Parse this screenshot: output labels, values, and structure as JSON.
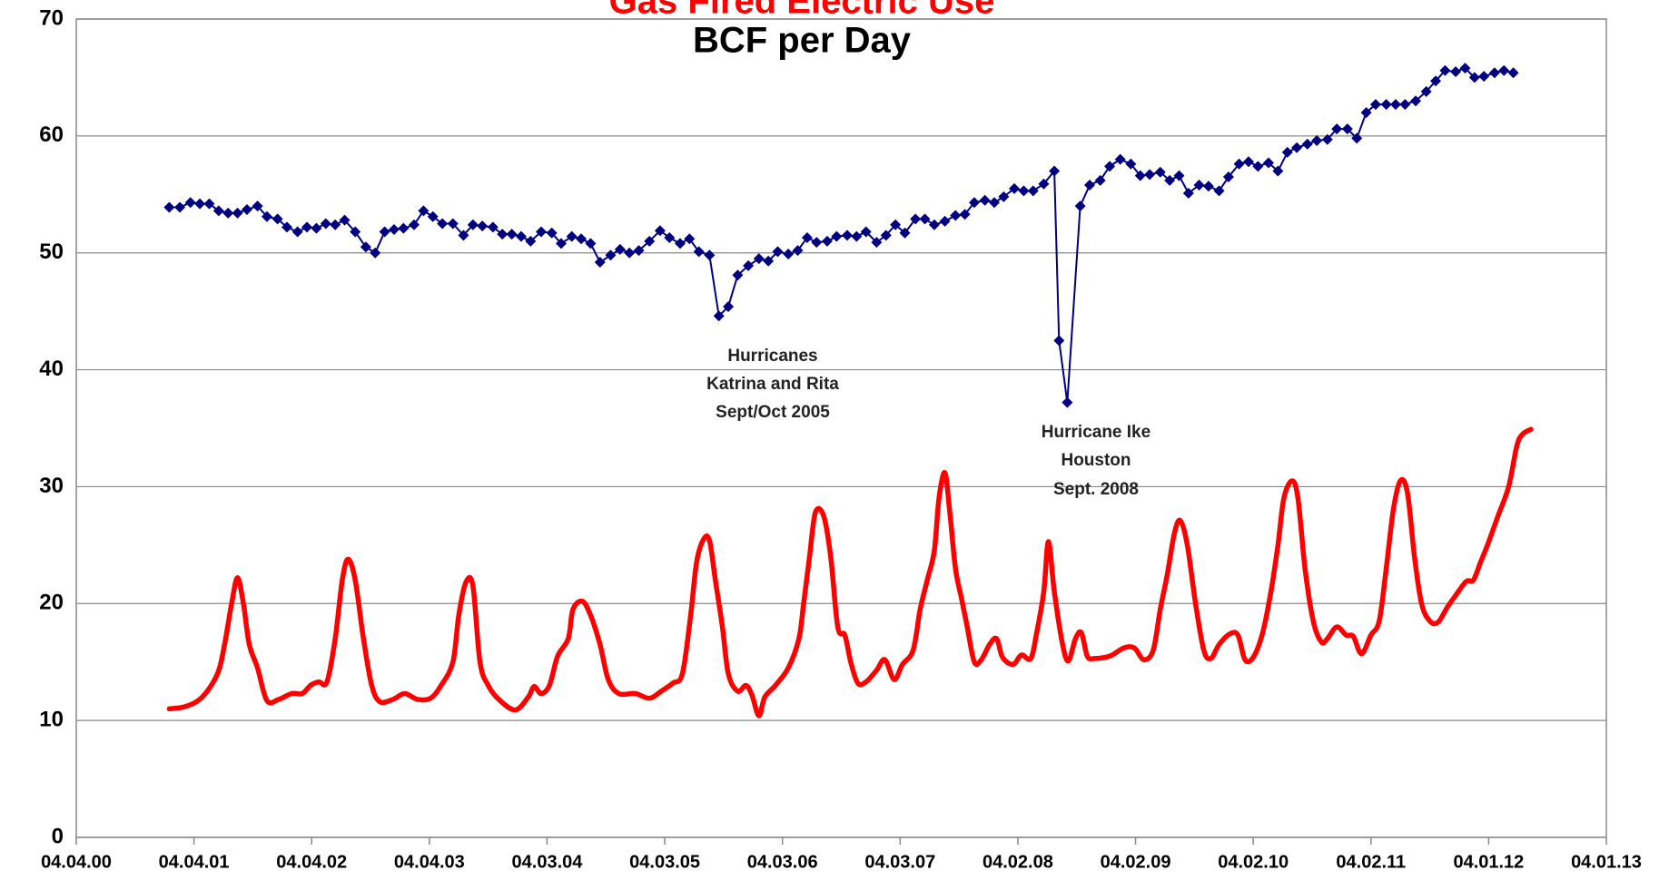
{
  "chart_data": {
    "type": "line",
    "title": "Gas Fired Electric Use",
    "subtitle": "BCF per Day",
    "xlim": [
      0,
      13
    ],
    "xticks": [
      {
        "value": 0,
        "label": "04.04.00"
      },
      {
        "value": 1,
        "label": "04.04.01"
      },
      {
        "value": 2,
        "label": "04.04.02"
      },
      {
        "value": 3,
        "label": "04.04.03"
      },
      {
        "value": 4,
        "label": "04.03.04"
      },
      {
        "value": 5,
        "label": "04.03.05"
      },
      {
        "value": 6,
        "label": "04.03.06"
      },
      {
        "value": 7,
        "label": "04.03.07"
      },
      {
        "value": 8,
        "label": "04.02.08"
      },
      {
        "value": 9,
        "label": "04.02.09"
      },
      {
        "value": 10,
        "label": "04.02.10"
      },
      {
        "value": 11,
        "label": "04.02.11"
      },
      {
        "value": 12,
        "label": "04.01.12"
      },
      {
        "value": 13,
        "label": "04.01.13"
      }
    ],
    "ylim": [
      0,
      70
    ],
    "yticks": [
      0,
      10,
      20,
      30,
      40,
      50,
      60,
      70
    ],
    "grid": true,
    "annotations": [
      {
        "lines": [
          "Hurricanes",
          "Katrina and Rita",
          "Sept/Oct 2005"
        ]
      },
      {
        "lines": [
          "Hurricane Ike",
          "Houston",
          "Sept. 2008"
        ]
      }
    ],
    "series": [
      {
        "color": "#000080",
        "markers": true,
        "smooth": false,
        "x": [
          0.79,
          0.88,
          0.97,
          1.05,
          1.13,
          1.21,
          1.29,
          1.37,
          1.45,
          1.54,
          1.62,
          1.71,
          1.79,
          1.88,
          1.96,
          2.04,
          2.12,
          2.2,
          2.28,
          2.37,
          2.46,
          2.54,
          2.62,
          2.7,
          2.78,
          2.87,
          2.95,
          3.03,
          3.11,
          3.2,
          3.29,
          3.37,
          3.45,
          3.54,
          3.62,
          3.7,
          3.78,
          3.86,
          3.95,
          4.04,
          4.12,
          4.21,
          4.29,
          4.37,
          4.45,
          4.54,
          4.62,
          4.7,
          4.78,
          4.87,
          4.96,
          5.04,
          5.13,
          5.21,
          5.29,
          5.38,
          5.46,
          5.54,
          5.62,
          5.71,
          5.8,
          5.88,
          5.96,
          6.05,
          6.13,
          6.21,
          6.29,
          6.38,
          6.46,
          6.55,
          6.63,
          6.71,
          6.8,
          6.88,
          6.96,
          7.04,
          7.13,
          7.21,
          7.29,
          7.38,
          7.47,
          7.55,
          7.63,
          7.72,
          7.8,
          7.88,
          7.97,
          8.05,
          8.13,
          8.22,
          8.31,
          8.35,
          8.42,
          8.53,
          8.61,
          8.7,
          8.78,
          8.87,
          8.96,
          9.04,
          9.12,
          9.21,
          9.29,
          9.37,
          9.45,
          9.54,
          9.62,
          9.71,
          9.79,
          9.88,
          9.96,
          10.04,
          10.13,
          10.21,
          10.29,
          10.37,
          10.46,
          10.54,
          10.63,
          10.71,
          10.8,
          10.88,
          10.96,
          11.04,
          11.13,
          11.21,
          11.29,
          11.38,
          11.47,
          11.55,
          11.63,
          11.72,
          11.8,
          11.88,
          11.96,
          12.05,
          12.13,
          12.21
        ],
        "values": [
          53.9,
          53.9,
          54.3,
          54.2,
          54.2,
          53.6,
          53.4,
          53.4,
          53.7,
          54.0,
          53.1,
          52.9,
          52.2,
          51.8,
          52.2,
          52.1,
          52.5,
          52.4,
          52.8,
          51.8,
          50.5,
          50.0,
          51.8,
          52.0,
          52.1,
          52.4,
          53.6,
          53.1,
          52.5,
          52.5,
          51.5,
          52.4,
          52.3,
          52.2,
          51.6,
          51.6,
          51.4,
          51.0,
          51.8,
          51.7,
          50.8,
          51.4,
          51.2,
          50.8,
          49.2,
          49.8,
          50.3,
          50.0,
          50.2,
          51.0,
          51.9,
          51.3,
          50.8,
          51.2,
          50.1,
          49.8,
          44.6,
          45.4,
          48.1,
          48.9,
          49.5,
          49.3,
          50.1,
          49.9,
          50.2,
          51.3,
          50.9,
          51.0,
          51.4,
          51.5,
          51.4,
          51.8,
          50.9,
          51.5,
          52.4,
          51.7,
          52.9,
          52.9,
          52.4,
          52.7,
          53.2,
          53.3,
          54.3,
          54.5,
          54.3,
          54.8,
          55.5,
          55.3,
          55.3,
          55.9,
          57.0,
          42.5,
          37.2,
          54.0,
          55.8,
          56.2,
          57.4,
          58.0,
          57.6,
          56.6,
          56.7,
          56.9,
          56.2,
          56.6,
          55.1,
          55.8,
          55.7,
          55.3,
          56.5,
          57.6,
          57.8,
          57.4,
          57.7,
          57.0,
          58.6,
          59.0,
          59.3,
          59.6,
          59.7,
          60.6,
          60.6,
          59.8,
          62.0,
          62.7,
          62.7,
          62.7,
          62.7,
          63.0,
          63.8,
          64.7,
          65.6,
          65.5,
          65.8,
          65.0,
          65.1,
          65.4,
          65.6,
          65.4
        ]
      },
      {
        "color": "#ff0000",
        "markers": false,
        "smooth": true,
        "x": [
          0.79,
          0.93,
          1.07,
          1.2,
          1.26,
          1.32,
          1.37,
          1.42,
          1.47,
          1.54,
          1.62,
          1.72,
          1.83,
          1.92,
          1.99,
          2.06,
          2.13,
          2.2,
          2.26,
          2.31,
          2.37,
          2.44,
          2.51,
          2.58,
          2.69,
          2.79,
          2.9,
          3.01,
          3.1,
          3.2,
          3.25,
          3.31,
          3.37,
          3.43,
          3.5,
          3.59,
          3.73,
          3.84,
          3.89,
          3.95,
          4.02,
          4.09,
          4.18,
          4.22,
          4.3,
          4.37,
          4.45,
          4.52,
          4.61,
          4.75,
          4.87,
          4.97,
          5.07,
          5.15,
          5.22,
          5.27,
          5.33,
          5.38,
          5.43,
          5.49,
          5.54,
          5.62,
          5.69,
          5.74,
          5.8,
          5.85,
          5.94,
          6.05,
          6.14,
          6.18,
          6.23,
          6.28,
          6.35,
          6.41,
          6.47,
          6.53,
          6.58,
          6.64,
          6.71,
          6.8,
          6.87,
          6.95,
          7.02,
          7.11,
          7.17,
          7.23,
          7.29,
          7.33,
          7.38,
          7.42,
          7.47,
          7.52,
          7.57,
          7.63,
          7.69,
          7.76,
          7.82,
          7.87,
          7.96,
          8.03,
          8.11,
          8.16,
          8.22,
          8.26,
          8.31,
          8.38,
          8.43,
          8.49,
          8.54,
          8.59,
          8.65,
          8.78,
          8.9,
          8.99,
          9.07,
          9.15,
          9.21,
          9.27,
          9.33,
          9.38,
          9.44,
          9.51,
          9.58,
          9.64,
          9.71,
          9.8,
          9.87,
          9.93,
          10.0,
          10.08,
          10.15,
          10.21,
          10.26,
          10.33,
          10.38,
          10.44,
          10.51,
          10.58,
          10.63,
          10.71,
          10.79,
          10.85,
          10.92,
          11.0,
          11.07,
          11.13,
          11.19,
          11.25,
          11.31,
          11.37,
          11.43,
          11.5,
          11.57,
          11.65,
          11.72,
          11.81,
          11.87,
          11.93,
          11.99,
          12.08,
          12.17,
          12.24,
          12.29,
          12.36
        ],
        "values": [
          11.0,
          11.2,
          12.0,
          14.0,
          16.5,
          20,
          22.2,
          20,
          16.5,
          14.5,
          11.7,
          11.8,
          12.3,
          12.3,
          13.0,
          13.3,
          13.3,
          17,
          22,
          23.8,
          22,
          17,
          13,
          11.6,
          11.8,
          12.3,
          11.8,
          11.9,
          13,
          15,
          19,
          21.8,
          21.5,
          15,
          13,
          11.8,
          10.9,
          12.0,
          12.9,
          12.3,
          13,
          15.5,
          17,
          19.5,
          20.2,
          19,
          16.5,
          13.5,
          12.3,
          12.3,
          11.9,
          12.5,
          13.2,
          14,
          19,
          23.5,
          25.5,
          25.4,
          22,
          18,
          14,
          12.5,
          13,
          12.2,
          10.4,
          12,
          13,
          14.5,
          17,
          20,
          24,
          27.8,
          27.5,
          24,
          18,
          17.3,
          15,
          13.2,
          13.3,
          14.3,
          15.2,
          13.5,
          14.8,
          16,
          19.5,
          22,
          24.5,
          29,
          31.2,
          28,
          23,
          20.5,
          18,
          15,
          15.2,
          16.5,
          17,
          15.4,
          14.8,
          15.6,
          15.3,
          17.5,
          21,
          25.3,
          21,
          16.5,
          15.1,
          17,
          17.5,
          15.5,
          15.3,
          15.5,
          16.2,
          16.2,
          15.2,
          16,
          19.5,
          22.5,
          26,
          27.1,
          25,
          20,
          16,
          15.3,
          16.5,
          17.4,
          17.3,
          15.2,
          15.4,
          17.5,
          21,
          25,
          29,
          30.5,
          29,
          23,
          18.5,
          16.7,
          17,
          18,
          17.3,
          17.2,
          15.7,
          17.3,
          18.5,
          23,
          28,
          30.5,
          29.5,
          24,
          20,
          18.5,
          18.4,
          19.7,
          20.7,
          21.9,
          22,
          23.5,
          25,
          27.5,
          30,
          33.5,
          34.5,
          34.9
        ]
      }
    ]
  }
}
